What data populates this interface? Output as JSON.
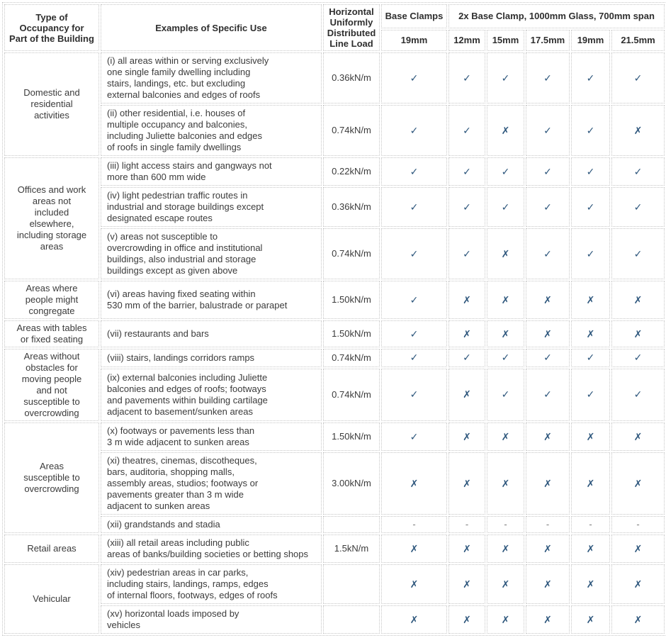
{
  "table": {
    "header": {
      "col_occupancy": "Type of\nOccupancy for\nPart of the Building",
      "col_examples": "Examples of Specific Use",
      "col_load": "Horizontal\nUniformly\nDistributed\nLine Load",
      "group_base": "Base Clamps",
      "group_2x": "2x Base Clamp, 1000mm Glass, 700mm span",
      "subcols": [
        "19mm",
        "12mm",
        "15mm",
        "17.5mm",
        "19mm",
        "21.5mm"
      ]
    },
    "mark_glyphs": {
      "check": "✓",
      "cross": "✗",
      "dash": "-"
    },
    "colors": {
      "mark_blue": "#2d567c",
      "border": "#c6c6c6",
      "text": "#3b3b3b",
      "dash": "#7a7a7a"
    },
    "groups": [
      {
        "occupancy": "Domestic and\nresidential\nactivities",
        "rows": [
          {
            "example": "(i) all areas within or serving exclusively\none single family dwelling including\nstairs, landings, etc. but excluding\nexternal balconies and edges of roofs",
            "load": "0.36kN/m",
            "marks": [
              "check",
              "check",
              "check",
              "check",
              "check",
              "check"
            ]
          },
          {
            "example": "(ii) other residential, i.e. houses of\nmultiple occupancy and balconies,\nincluding Juliette balconies and edges\nof roofs in single family dwellings",
            "load": "0.74kN/m",
            "marks": [
              "check",
              "check",
              "cross",
              "check",
              "check",
              "cross"
            ]
          }
        ]
      },
      {
        "occupancy": "Offices and work\nareas not\nincluded\nelsewhere,\nincluding storage\nareas",
        "rows": [
          {
            "example": "(iii) light access stairs and gangways not\nmore than 600 mm wide",
            "load": "0.22kN/m",
            "marks": [
              "check",
              "check",
              "check",
              "check",
              "check",
              "check"
            ]
          },
          {
            "example": "(iv) light pedestrian traffic routes in\nindustrial and storage buildings except\ndesignated escape routes",
            "load": "0.36kN/m",
            "marks": [
              "check",
              "check",
              "check",
              "check",
              "check",
              "check"
            ]
          },
          {
            "example": "(v) areas not susceptible to\novercrowding in office and institutional\nbuildings, also industrial and storage\nbuildings except as given above",
            "load": "0.74kN/m",
            "marks": [
              "check",
              "check",
              "cross",
              "check",
              "check",
              "check"
            ]
          }
        ]
      },
      {
        "occupancy": "Areas where\npeople might\ncongregate",
        "rows": [
          {
            "example": "(vi) areas having fixed seating within\n530 mm of the barrier, balustrade or parapet",
            "load": "1.50kN/m",
            "marks": [
              "check",
              "cross",
              "cross",
              "cross",
              "cross",
              "cross"
            ]
          }
        ]
      },
      {
        "occupancy": "Areas with tables\nor fixed seating",
        "rows": [
          {
            "example": "(vii) restaurants and bars",
            "load": "1.50kN/m",
            "marks": [
              "check",
              "cross",
              "cross",
              "cross",
              "cross",
              "cross"
            ]
          }
        ]
      },
      {
        "occupancy": "Areas without\nobstacles for\nmoving people\nand not\nsusceptible to\novercrowding",
        "rows": [
          {
            "example": "(viii) stairs, landings corridors ramps",
            "load": "0.74kN/m",
            "marks": [
              "check",
              "check",
              "check",
              "check",
              "check",
              "check"
            ]
          },
          {
            "example": "(ix) external balconies including Juliette\nbalconies and edges of roofs; footways\nand pavements within building cartilage\nadjacent to basement/sunken areas",
            "load": "0.74kN/m",
            "marks": [
              "check",
              "cross",
              "check",
              "check",
              "check",
              "check"
            ]
          }
        ]
      },
      {
        "occupancy": "Areas\nsusceptible to\novercrowding",
        "rows": [
          {
            "example": "(x) footways or pavements less than\n3 m wide adjacent to sunken areas",
            "load": "1.50kN/m",
            "marks": [
              "check",
              "cross",
              "cross",
              "cross",
              "cross",
              "cross"
            ]
          },
          {
            "example": "(xi) theatres, cinemas, discotheques,\nbars, auditoria, shopping malls,\nassembly areas, studios; footways or\npavements greater than 3 m wide\nadjacent to sunken areas",
            "load": "3.00kN/m",
            "marks": [
              "cross",
              "cross",
              "cross",
              "cross",
              "cross",
              "cross"
            ]
          },
          {
            "example": "(xii) grandstands and stadia",
            "load": "",
            "marks": [
              "dash",
              "dash",
              "dash",
              "dash",
              "dash",
              "dash"
            ]
          }
        ]
      },
      {
        "occupancy": "Retail areas",
        "rows": [
          {
            "example": "(xiii) all retail areas including public\nareas of banks/building societies or betting shops",
            "load": "1.5kN/m",
            "marks": [
              "cross",
              "cross",
              "cross",
              "cross",
              "cross",
              "cross"
            ]
          }
        ]
      },
      {
        "occupancy": "Vehicular",
        "rows": [
          {
            "example": "(xiv) pedestrian areas in car parks,\nincluding stairs, landings, ramps, edges\nof internal floors, footways, edges of roofs",
            "load": "",
            "marks": [
              "cross",
              "cross",
              "cross",
              "cross",
              "cross",
              "cross"
            ]
          },
          {
            "example": "(xv) horizontal loads imposed by\nvehicles",
            "load": "",
            "marks": [
              "cross",
              "cross",
              "cross",
              "cross",
              "cross",
              "cross"
            ]
          }
        ]
      }
    ]
  }
}
